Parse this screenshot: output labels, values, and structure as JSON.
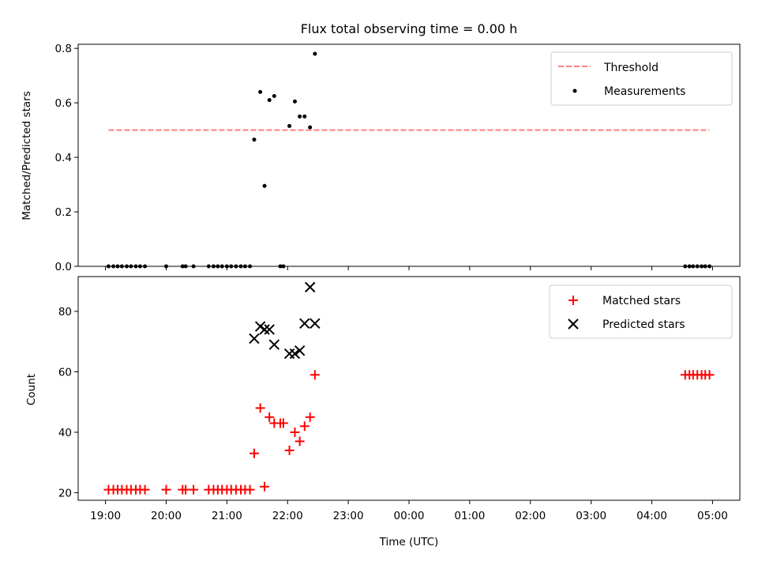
{
  "title": "Flux total observing time = 0.00 h",
  "chart_data": [
    {
      "type": "scatter",
      "ylabel": "Matched/Predicted stars",
      "ylim": [
        0,
        0.815
      ],
      "yticks": [
        0.0,
        0.2,
        0.4,
        0.6,
        0.8
      ],
      "ytick_labels": [
        "0.0",
        "0.2",
        "0.4",
        "0.6",
        "0.8"
      ],
      "legend_position": "top-right",
      "threshold": {
        "name": "Threshold",
        "value": 0.5,
        "x_start": 19.05,
        "x_end": 28.95,
        "color": "#ff7f7f"
      },
      "series": [
        {
          "name": "Measurements",
          "marker": "dot",
          "color": "#000000",
          "x": [
            19.05,
            19.13,
            19.2,
            19.27,
            19.35,
            19.42,
            19.5,
            19.57,
            19.65,
            20.0,
            20.27,
            20.32,
            20.45,
            20.7,
            20.78,
            20.85,
            20.92,
            21.0,
            21.07,
            21.15,
            21.23,
            21.3,
            21.38,
            21.45,
            21.55,
            21.62,
            21.7,
            21.78,
            21.88,
            21.93,
            22.03,
            22.12,
            22.2,
            22.28,
            22.37,
            22.45,
            28.55,
            28.62,
            28.68,
            28.75,
            28.82,
            28.88,
            28.95
          ],
          "y": [
            0,
            0,
            0,
            0,
            0,
            0,
            0,
            0,
            0,
            0,
            0,
            0,
            0,
            0,
            0,
            0,
            0,
            0,
            0,
            0,
            0,
            0,
            0,
            0.465,
            0.64,
            0.295,
            0.61,
            0.625,
            0,
            0,
            0.515,
            0.605,
            0.55,
            0.55,
            0.51,
            0.78,
            0,
            0,
            0,
            0,
            0,
            0,
            0
          ]
        }
      ]
    },
    {
      "type": "scatter",
      "ylabel": "Count",
      "xlabel": "Time (UTC)",
      "ylim": [
        17.5,
        91.5
      ],
      "yticks": [
        20,
        40,
        60,
        80
      ],
      "ytick_labels": [
        "20",
        "40",
        "60",
        "80"
      ],
      "xlim": [
        18.55,
        29.45
      ],
      "xticks": [
        19,
        20,
        21,
        22,
        23,
        24,
        25,
        26,
        27,
        28,
        29
      ],
      "xtick_labels": [
        "19:00",
        "20:00",
        "21:00",
        "22:00",
        "23:00",
        "00:00",
        "01:00",
        "02:00",
        "03:00",
        "04:00",
        "05:00"
      ],
      "legend_position": "top-right",
      "series": [
        {
          "name": "Matched stars",
          "marker": "plus",
          "color": "#ff0000",
          "x": [
            19.05,
            19.13,
            19.2,
            19.27,
            19.35,
            19.42,
            19.5,
            19.57,
            19.65,
            20.0,
            20.27,
            20.32,
            20.45,
            20.7,
            20.78,
            20.85,
            20.92,
            21.0,
            21.07,
            21.15,
            21.23,
            21.3,
            21.38,
            21.45,
            21.55,
            21.62,
            21.7,
            21.78,
            21.88,
            21.93,
            22.03,
            22.12,
            22.2,
            22.28,
            22.37,
            22.45,
            28.55,
            28.62,
            28.68,
            28.75,
            28.82,
            28.88,
            28.95
          ],
          "y": [
            21,
            21,
            21,
            21,
            21,
            21,
            21,
            21,
            21,
            21,
            21,
            21,
            21,
            21,
            21,
            21,
            21,
            21,
            21,
            21,
            21,
            21,
            21,
            33,
            48,
            22,
            45,
            43,
            43,
            43,
            34,
            40,
            37,
            42,
            45,
            59,
            59,
            59,
            59,
            59,
            59,
            59,
            59
          ]
        },
        {
          "name": "Predicted stars",
          "marker": "x",
          "color": "#000000",
          "x": [
            21.45,
            21.55,
            21.62,
            21.7,
            21.78,
            22.03,
            22.12,
            22.2,
            22.28,
            22.37,
            22.45
          ],
          "y": [
            71,
            75,
            74,
            74,
            69,
            66,
            66,
            67,
            76,
            88,
            76
          ]
        }
      ]
    }
  ]
}
